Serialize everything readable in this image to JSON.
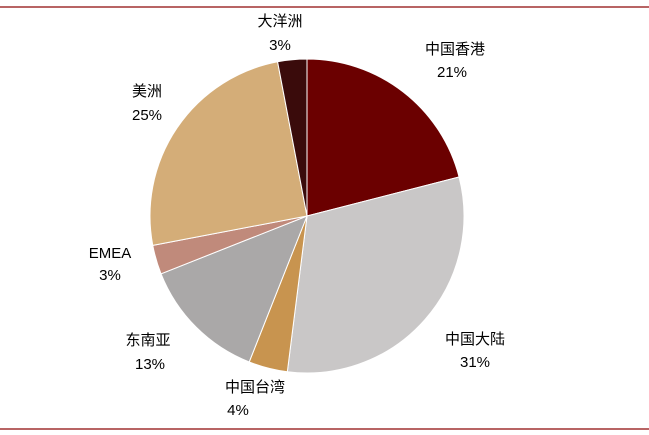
{
  "chart_data": {
    "type": "pie",
    "categories": [
      "中国香港",
      "中国大陆",
      "中国台湾",
      "东南亚",
      "EMEA",
      "美洲",
      "大洋洲"
    ],
    "values": [
      21,
      31,
      4,
      13,
      3,
      25,
      3
    ],
    "value_labels": [
      "21%",
      "31%",
      "4%",
      "13%",
      "3%",
      "25%",
      "3%"
    ],
    "colors": [
      "#6b0000",
      "#c9c7c7",
      "#c8944f",
      "#aaa8a8",
      "#c08a7b",
      "#d4ad78",
      "#3a0b0b"
    ]
  }
}
